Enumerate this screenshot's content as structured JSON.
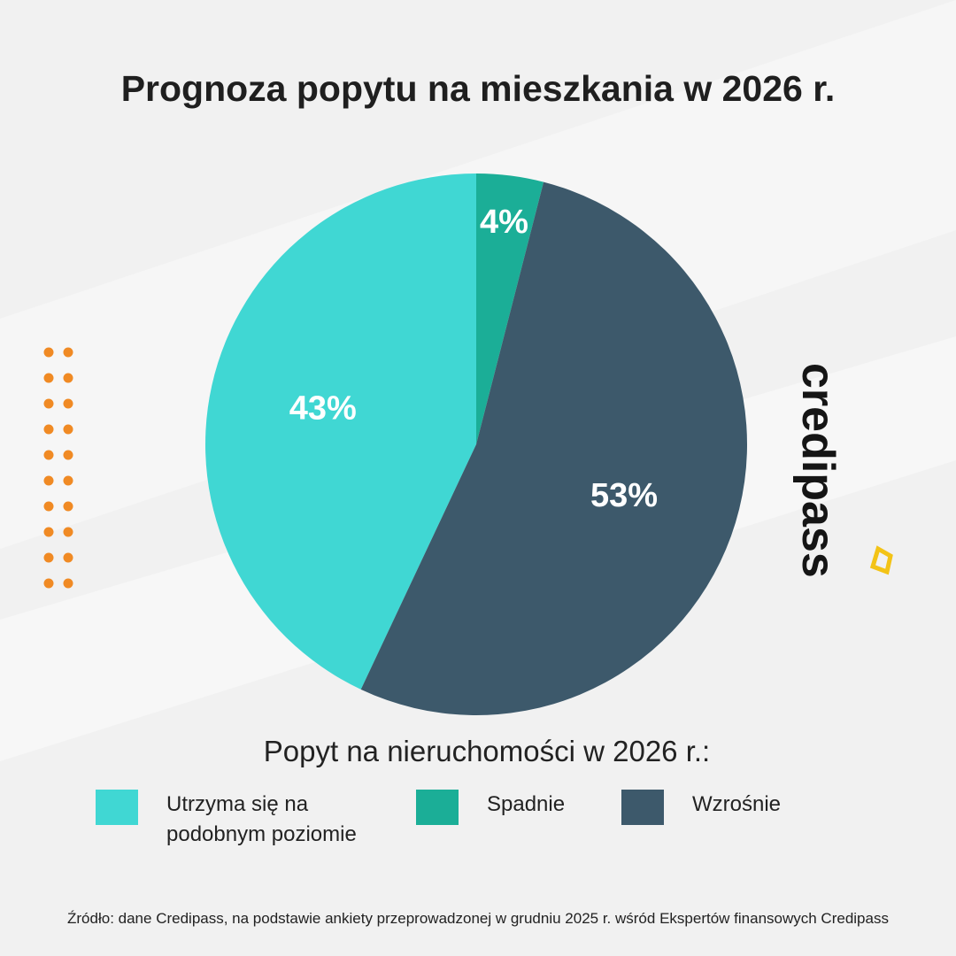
{
  "chart_data": {
    "type": "pie",
    "title": "Prognoza popytu na mieszkania w 2026 r.",
    "legend_title": "Popyt na nieruchomości w 2026 r.:",
    "categories": [
      "Utrzyma się na podobnym poziomie",
      "Spadnie",
      "Wzrośnie"
    ],
    "values": [
      43,
      4,
      53
    ],
    "value_labels": [
      "43%",
      "4%",
      "53%"
    ],
    "colors": [
      "#40d7d3",
      "#1bae97",
      "#3d596b"
    ],
    "source": "Źródło: dane Credipass, na podstawie ankiety przeprowadzonej w grudniu 2025 r. wśród Ekspertów finansowych Credipass"
  },
  "logo": "credipass"
}
